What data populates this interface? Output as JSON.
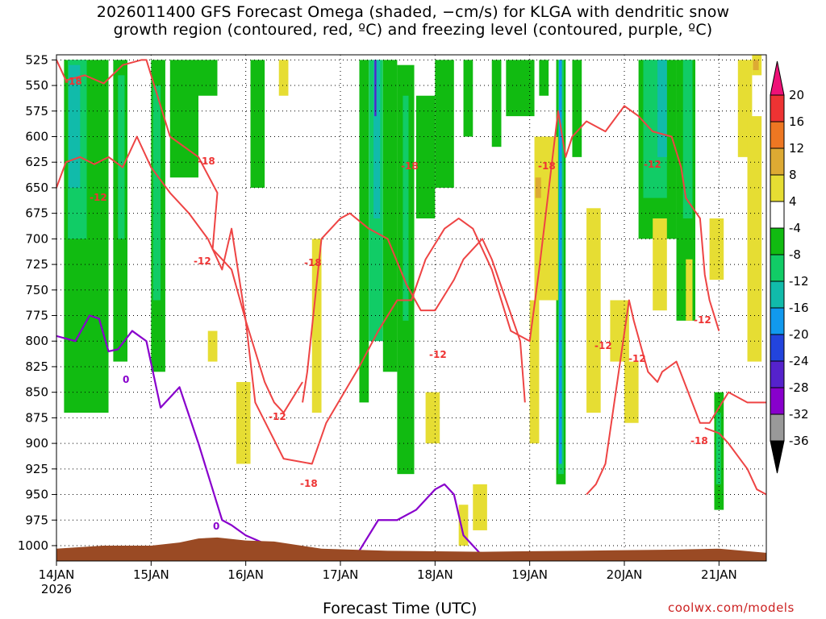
{
  "chart_data": {
    "type": "heatmap",
    "title_line1": "2026011400 GFS Forecast Omega (shaded, −cm/s) for KLGA with dendritic snow",
    "title_line2": "growth region (contoured, red, ºC) and freezing level (contoured, purple, ºC)",
    "xlabel": "Forecast Time (UTC)",
    "credit": "coolwx.com/models",
    "x_ticks": [
      "14JAN",
      "15JAN",
      "16JAN",
      "17JAN",
      "18JAN",
      "19JAN",
      "20JAN",
      "21JAN"
    ],
    "x_year": "2026",
    "xlim_days": [
      0,
      7.5
    ],
    "y_ticks": [
      525,
      550,
      575,
      600,
      625,
      650,
      675,
      700,
      725,
      750,
      775,
      800,
      825,
      850,
      875,
      900,
      925,
      950,
      975,
      1000
    ],
    "ylim_hpa": [
      1015,
      520
    ],
    "grid": "dotted",
    "colorbar": {
      "labels": [
        "20",
        "16",
        "12",
        "8",
        "4",
        "-4",
        "-8",
        "-12",
        "-16",
        "-20",
        "-24",
        "-28",
        "-32",
        "-36"
      ],
      "colors": [
        "#ee1177",
        "#ee3333",
        "#ee7722",
        "#ddaa33",
        "#e6dd33",
        "#ffffff",
        "#11bb11",
        "#11cc66",
        "#11bbaa",
        "#1199ee",
        "#2244dd",
        "#5522cc",
        "#8800cc",
        "#999999",
        "#000000"
      ]
    },
    "contour_colors": {
      "dgz": "#ee4444",
      "freezing": "#8800cc",
      "terrain": "#9a4a24"
    },
    "contour_labels": {
      "red": [
        "-18",
        "-12",
        "-18",
        "-12",
        "-18",
        "-12",
        "-18",
        "-12",
        "-18",
        "-12",
        "-12",
        "-12",
        "-18",
        "-12",
        "-18"
      ],
      "purple": [
        "0",
        "0"
      ]
    },
    "freezing_level": {
      "x_days": [
        0,
        0.2,
        0.35,
        0.45,
        0.55,
        0.65,
        0.8,
        0.95,
        1.1,
        1.3,
        1.5,
        1.75,
        1.85,
        2.0,
        2.5,
        3.0,
        3.2,
        3.4,
        3.6,
        3.8,
        4.0,
        4.1,
        4.2,
        4.3,
        4.5,
        4.6,
        4.8
      ],
      "level_hpa": [
        795,
        800,
        775,
        778,
        810,
        808,
        790,
        800,
        865,
        845,
        900,
        975,
        980,
        990,
        1010,
        1010,
        1005,
        975,
        975,
        965,
        945,
        940,
        950,
        990,
        1010,
        1010,
        1010
      ]
    },
    "dgz_minus12_top_left": {
      "x_days": [
        0,
        0.1,
        0.25,
        0.4,
        0.55,
        0.7,
        0.85,
        1.0,
        1.2,
        1.4,
        1.6,
        1.75,
        1.85,
        2.0,
        2.2,
        2.3,
        2.4,
        2.6
      ],
      "level_hpa": [
        650,
        625,
        620,
        627,
        620,
        630,
        600,
        630,
        655,
        675,
        700,
        730,
        690,
        780,
        840,
        860,
        870,
        840
      ]
    }
  }
}
